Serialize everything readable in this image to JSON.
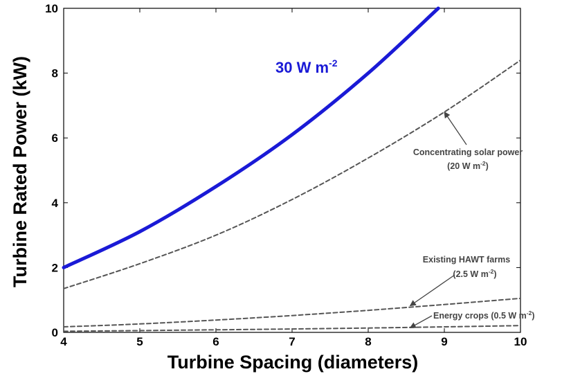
{
  "chart_data": {
    "type": "line",
    "xlabel": "Turbine Spacing (diameters)",
    "ylabel": "Turbine Rated Power (kW)",
    "xlim": [
      4,
      10
    ],
    "ylim": [
      0,
      10
    ],
    "x_ticks": [
      "4",
      "5",
      "6",
      "7",
      "8",
      "9",
      "10"
    ],
    "y_ticks": [
      "0",
      "2",
      "4",
      "6",
      "8",
      "10"
    ],
    "grid": false,
    "colors": {
      "main": "#1a1ad6",
      "reference": "#555555",
      "annotation": "#444444"
    },
    "series": [
      {
        "style": "solid-thick",
        "label_parts": [
          "30 W m",
          "-2"
        ],
        "points": [
          [
            4,
            2.0
          ],
          [
            5,
            3.11
          ],
          [
            6,
            4.5
          ],
          [
            7,
            6.1
          ],
          [
            8,
            8.0
          ],
          [
            8.92,
            10.0
          ]
        ]
      },
      {
        "style": "dashed",
        "points": [
          [
            4,
            1.35
          ],
          [
            5,
            2.12
          ],
          [
            6,
            3.0
          ],
          [
            7,
            4.1
          ],
          [
            8,
            5.38
          ],
          [
            9,
            6.8
          ],
          [
            10,
            8.4
          ]
        ]
      },
      {
        "style": "dashed",
        "points": [
          [
            4,
            0.17
          ],
          [
            5,
            0.26
          ],
          [
            6,
            0.38
          ],
          [
            7,
            0.52
          ],
          [
            8,
            0.68
          ],
          [
            9,
            0.86
          ],
          [
            10,
            1.05
          ]
        ]
      },
      {
        "style": "dashed",
        "points": [
          [
            4,
            0.035
          ],
          [
            5,
            0.055
          ],
          [
            6,
            0.08
          ],
          [
            7,
            0.105
          ],
          [
            8,
            0.135
          ],
          [
            9,
            0.17
          ],
          [
            10,
            0.21
          ]
        ]
      }
    ],
    "annotations": [
      {
        "lines": [
          [
            "Concentrating solar power"
          ],
          [
            "(20 W m",
            "-2",
            ")"
          ]
        ],
        "target": [
          9.0,
          6.8
        ]
      },
      {
        "lines": [
          [
            "Existing HAWT farms"
          ],
          [
            "(2.5 W m",
            "-2",
            ")"
          ]
        ],
        "target": [
          8.55,
          0.82
        ]
      },
      {
        "lines": [
          [
            "Energy crops (0.5 W m",
            "-2",
            ")"
          ]
        ],
        "target": [
          8.55,
          0.14
        ]
      }
    ]
  }
}
